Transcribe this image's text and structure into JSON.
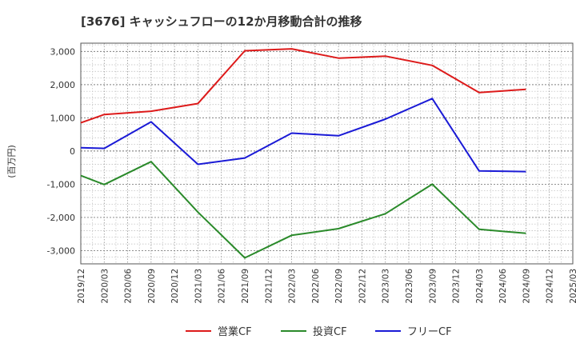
{
  "chart_data": {
    "type": "line",
    "title": "[3676]  キャッシュフローの12か月移動合計の推移",
    "ylabel": "(百万円)",
    "xlabel": "",
    "ylim": [
      -3400,
      3250
    ],
    "yticks": [
      3000,
      2000,
      1000,
      0,
      -1000,
      -2000,
      -3000
    ],
    "ytick_labels": [
      "3,000",
      "2,000",
      "1,000",
      "0",
      "-1,000",
      "-2,000",
      "-3,000"
    ],
    "categories": [
      "2019/12",
      "2020/03",
      "2020/06",
      "2020/09",
      "2020/12",
      "2021/03",
      "2021/06",
      "2021/09",
      "2021/12",
      "2022/03",
      "2022/06",
      "2022/09",
      "2022/12",
      "2023/03",
      "2023/06",
      "2023/09",
      "2023/12",
      "2024/03",
      "2024/06",
      "2024/09",
      "2024/12",
      "2025/03"
    ],
    "grid": true,
    "legend_position": "bottom",
    "series": [
      {
        "name": "営業CF",
        "color": "#dd1a1a",
        "values": [
          850,
          1100,
          null,
          1200,
          null,
          1430,
          null,
          3020,
          null,
          3080,
          null,
          2800,
          null,
          2860,
          null,
          2580,
          null,
          1760,
          null,
          1860,
          null,
          null
        ]
      },
      {
        "name": "投資CF",
        "color": "#2a8a2a",
        "values": [
          -740,
          -1010,
          null,
          -320,
          null,
          -1840,
          null,
          -3220,
          null,
          -2540,
          null,
          -2340,
          null,
          -1890,
          null,
          -1000,
          null,
          -2360,
          null,
          -2480,
          null,
          null
        ]
      },
      {
        "name": "フリーCF",
        "color": "#1a1ad6",
        "values": [
          100,
          80,
          null,
          880,
          null,
          -400,
          null,
          -210,
          null,
          540,
          null,
          460,
          null,
          960,
          null,
          1580,
          null,
          -600,
          null,
          -620,
          null,
          null
        ]
      }
    ]
  }
}
